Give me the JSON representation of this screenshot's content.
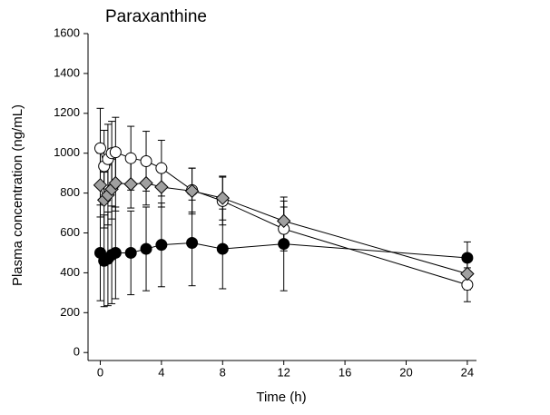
{
  "chart_data": {
    "type": "line",
    "title": "Paraxanthine",
    "x_label": "Time (h)",
    "y_label": "Plasma concentration (ng/mL)",
    "x": [
      0,
      0.25,
      0.5,
      0.75,
      1,
      2,
      3,
      4,
      6,
      8,
      12,
      24
    ],
    "xlim": [
      -0.8,
      24.6
    ],
    "xticks": [
      0,
      4,
      8,
      12,
      16,
      20,
      24
    ],
    "ylim": [
      -40,
      1600
    ],
    "yticks": [
      0,
      200,
      400,
      600,
      800,
      1000,
      1200,
      1400,
      1600
    ],
    "series": [
      {
        "marker": "circle",
        "color": "#ffffff",
        "values": [
          1025,
          935,
          970,
          1000,
          1005,
          975,
          960,
          925,
          815,
          760,
          620,
          340
        ],
        "errors": [
          200,
          180,
          175,
          160,
          175,
          160,
          150,
          140,
          110,
          120,
          110,
          85
        ]
      },
      {
        "marker": "diamond",
        "color": "#a0a0a0",
        "values": [
          840,
          765,
          790,
          820,
          850,
          845,
          850,
          830,
          810,
          775,
          660,
          395
        ],
        "errors": [
          160,
          140,
          150,
          150,
          140,
          120,
          110,
          100,
          115,
          110,
          100,
          80
        ]
      },
      {
        "marker": "circle",
        "color": "#000000",
        "values": [
          500,
          460,
          470,
          490,
          500,
          500,
          520,
          540,
          550,
          520,
          545,
          475
        ],
        "errors": [
          240,
          230,
          235,
          245,
          230,
          210,
          210,
          210,
          215,
          200,
          235,
          80
        ]
      }
    ]
  }
}
